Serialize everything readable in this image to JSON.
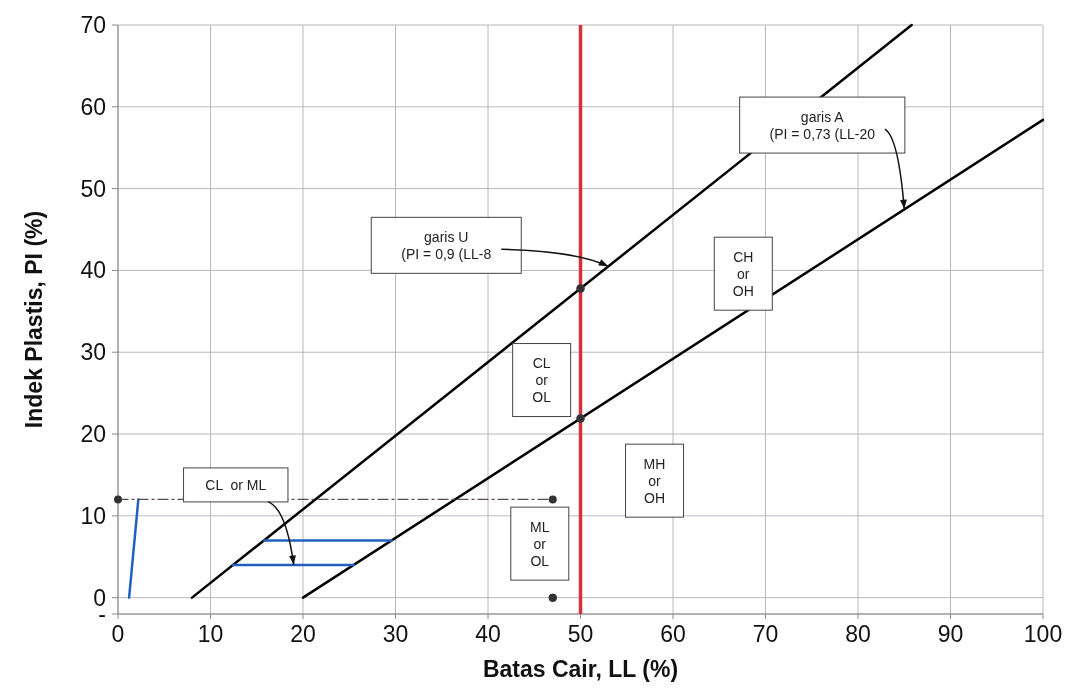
{
  "chart_data": {
    "type": "line",
    "xlabel": "Batas Cair, LL (%)",
    "ylabel": "Indek Plastis, PI (%)",
    "xlim": [
      0,
      100
    ],
    "xticks": [
      0,
      10,
      20,
      30,
      40,
      50,
      60,
      70,
      80,
      90,
      100
    ],
    "ylim": [
      -2,
      70
    ],
    "yticks": [
      {
        "value": -2,
        "label": "-"
      },
      0,
      10,
      20,
      30,
      40,
      50,
      60,
      70
    ],
    "grid": true,
    "series": [
      {
        "color": "#000000",
        "x": [
          8,
          85.8
        ],
        "values": [
          0,
          70
        ]
      },
      {
        "color": "#000000",
        "x": [
          20,
          100
        ],
        "values": [
          0,
          58.4
        ]
      },
      {
        "color": "#2060c0",
        "x": [
          1.2,
          2.2
        ],
        "values": [
          0,
          12
        ]
      },
      {
        "color": "#2060c0",
        "x": [
          15.8,
          29.6
        ],
        "values": [
          7,
          7
        ]
      },
      {
        "color": "#2060c0",
        "x": [
          12.4,
          25.5
        ],
        "values": [
          4,
          4
        ]
      },
      {
        "color": "#5a4a5a",
        "line_style": "dashed",
        "marker": "circle",
        "x": [
          0,
          47
        ],
        "values": [
          12,
          12
        ]
      },
      {
        "type": "scatter",
        "color": "#333333",
        "marker": "circle",
        "x": [
          47,
          50,
          50
        ],
        "values": [
          0,
          37.8,
          21.9
        ]
      }
    ],
    "ref_lines": [
      {
        "axis": "x",
        "value": 50,
        "color": "#d6303a"
      }
    ],
    "annotations": [
      {
        "text": "garis A\n(PI = 0,73 (LL-20",
        "x": 85,
        "y": 47.5
      },
      {
        "text": "garis U\n(PI = 0,9 (LL-8",
        "x": 53,
        "y": 40.5
      },
      {
        "text": "CL  or ML",
        "x": 19,
        "y": 4
      },
      "CH\nor\nOH",
      "CL\nor\nOL",
      "MH\nor\nOH",
      "ML\nor\nOL"
    ]
  }
}
